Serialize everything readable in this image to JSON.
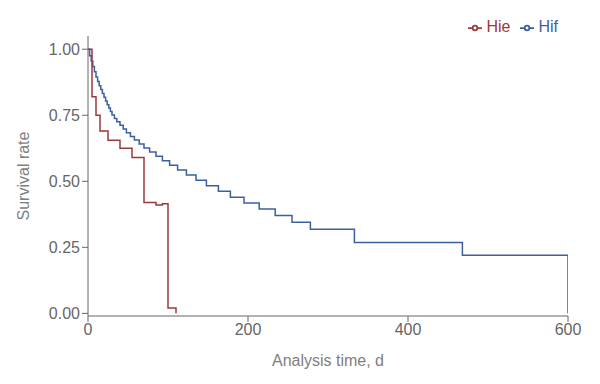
{
  "chart_data": {
    "type": "line",
    "title": "",
    "xlabel": "Analysis time, d",
    "ylabel": "Survival rate",
    "xlim": [
      0,
      600
    ],
    "ylim": [
      -0.01,
      1.05
    ],
    "xticks": [
      0,
      200,
      400,
      600
    ],
    "yticks": [
      {
        "value": 0.0,
        "label": "0.00"
      },
      {
        "value": 0.25,
        "label": "0.25"
      },
      {
        "value": 0.5,
        "label": "0.50"
      },
      {
        "value": 0.75,
        "label": "0.75"
      },
      {
        "value": 1.0,
        "label": "1.00"
      }
    ],
    "grid": false,
    "legend": "upper right",
    "line_style": "step",
    "series": [
      {
        "name": "Hif",
        "color": "#3c5fa0",
        "x": [
          0,
          2,
          4,
          6,
          8,
          10,
          12,
          14,
          16,
          18,
          20,
          22,
          24,
          26,
          28,
          30,
          33,
          36,
          40,
          44,
          48,
          53,
          58,
          64,
          70,
          77,
          85,
          93,
          102,
          112,
          123,
          135,
          148,
          163,
          178,
          195,
          214,
          234,
          255,
          278,
          305,
          333,
          362,
          395,
          430,
          468,
          510,
          555,
          595,
          600
        ],
        "values": [
          1.0,
          0.975,
          0.955,
          0.935,
          0.915,
          0.895,
          0.878,
          0.862,
          0.847,
          0.832,
          0.818,
          0.804,
          0.79,
          0.777,
          0.764,
          0.751,
          0.738,
          0.725,
          0.712,
          0.698,
          0.684,
          0.67,
          0.656,
          0.641,
          0.626,
          0.611,
          0.595,
          0.578,
          0.561,
          0.543,
          0.524,
          0.504,
          0.483,
          0.462,
          0.44,
          0.418,
          0.395,
          0.37,
          0.345,
          0.318,
          0.318,
          0.268,
          0.268,
          0.268,
          0.268,
          0.22,
          0.22,
          0.22,
          0.22,
          0.0
        ]
      },
      {
        "name": "Hie",
        "color": "#9b3a3a",
        "x": [
          0,
          5,
          10,
          15,
          25,
          40,
          55,
          70,
          85,
          93,
          100,
          110
        ],
        "values": [
          1.0,
          0.82,
          0.75,
          0.69,
          0.655,
          0.625,
          0.59,
          0.42,
          0.41,
          0.415,
          0.02,
          0.0
        ]
      }
    ]
  }
}
